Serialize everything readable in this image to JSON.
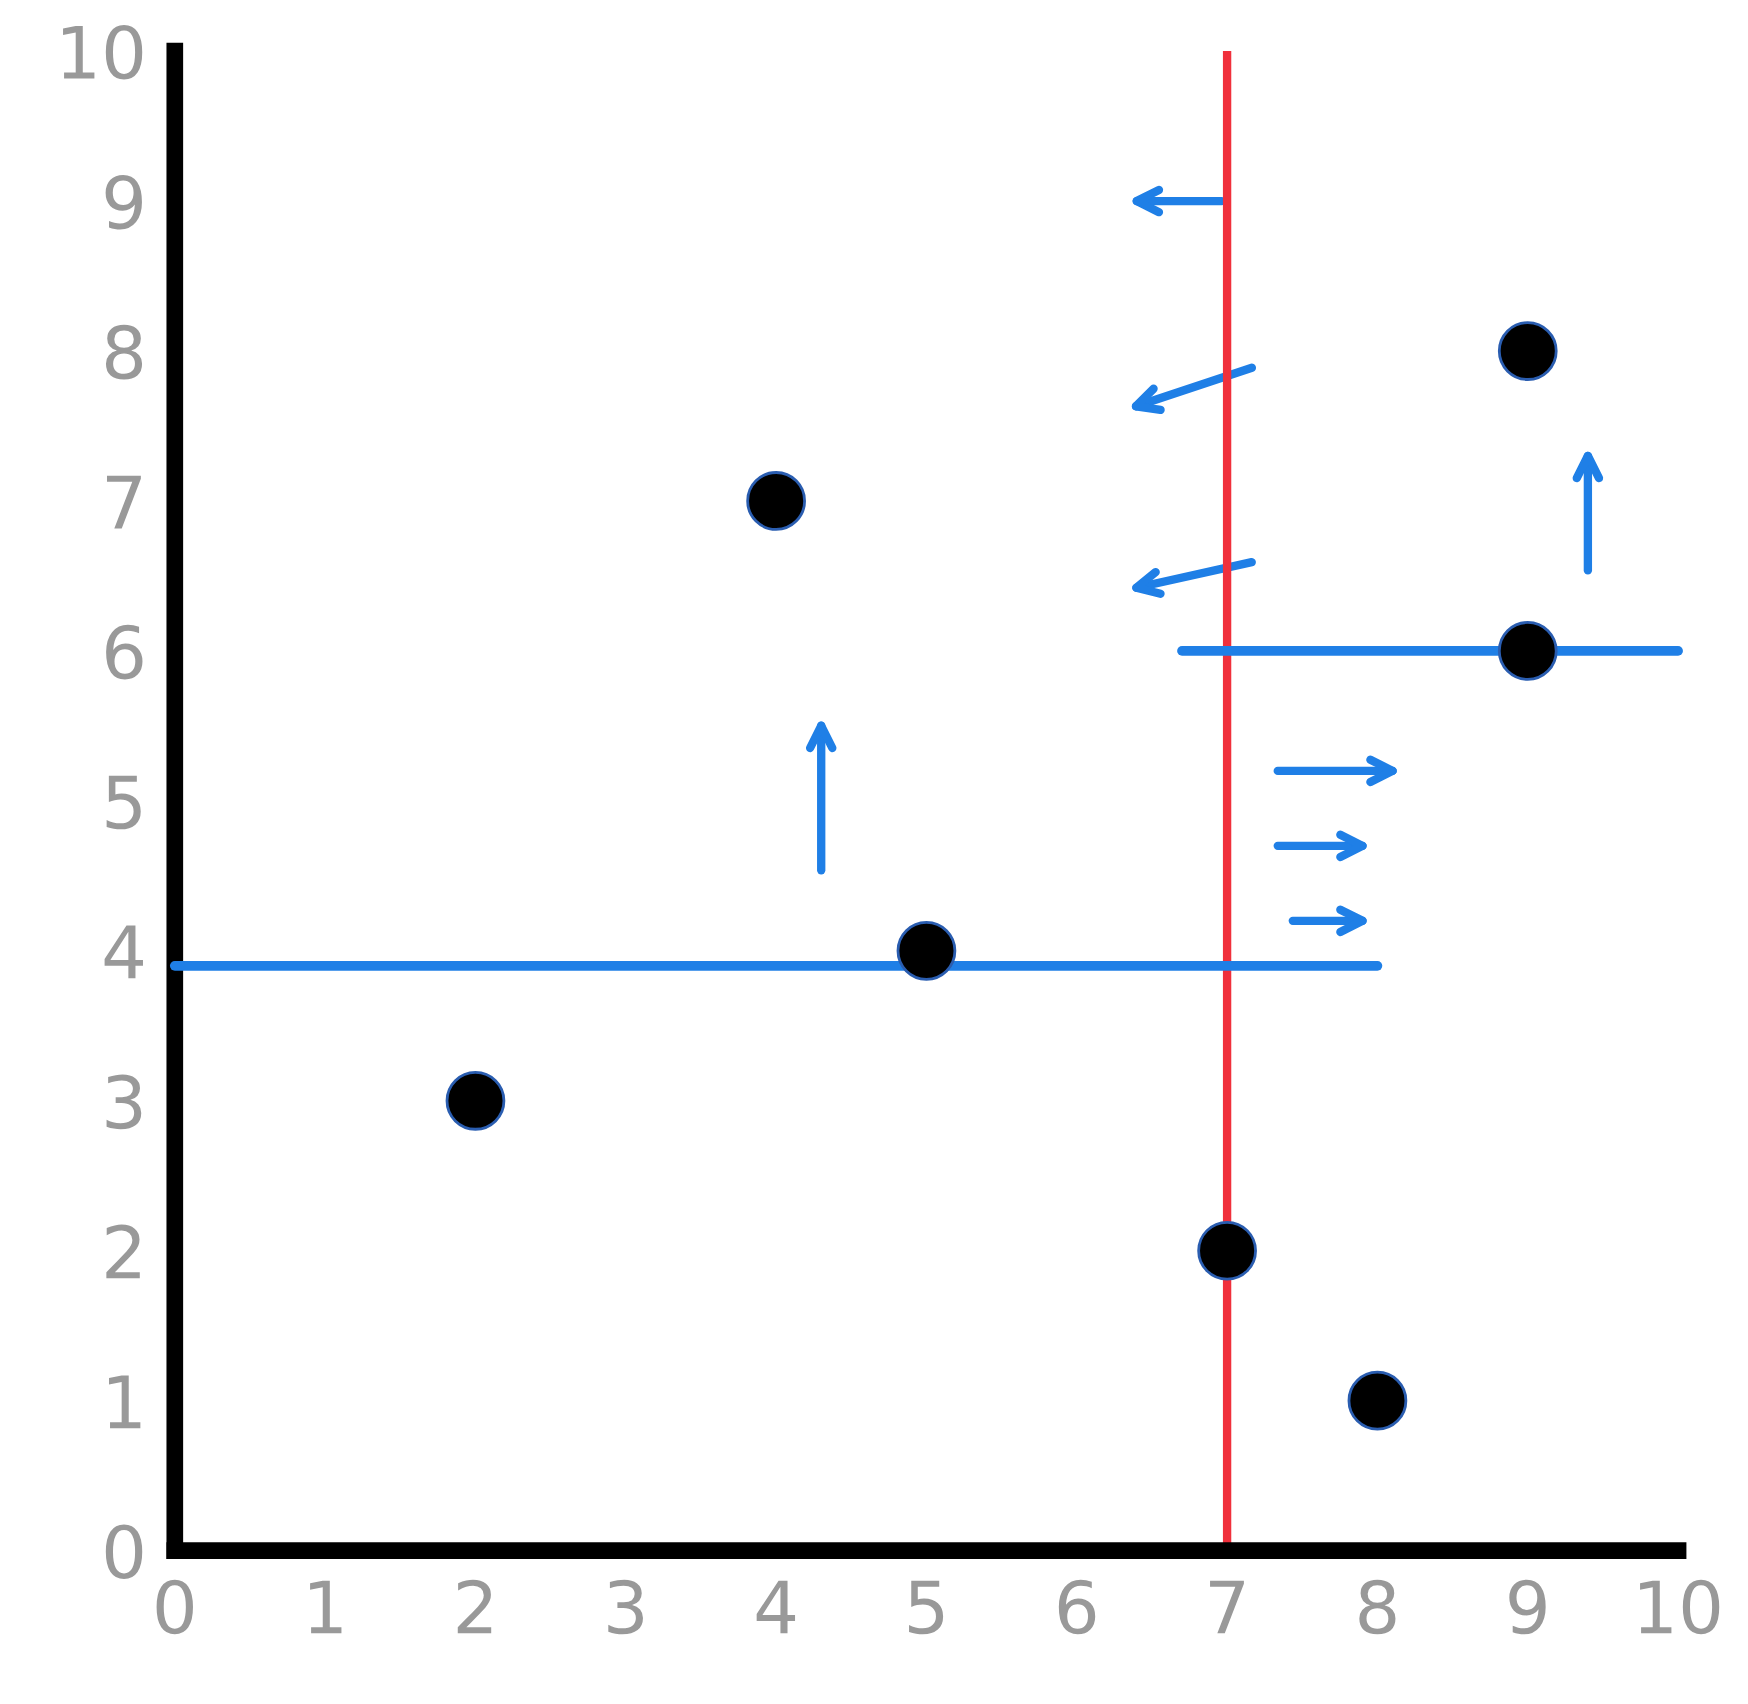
{
  "chart_data": {
    "type": "scatter",
    "xlim": [
      0,
      10
    ],
    "ylim": [
      0,
      10
    ],
    "xticks": [
      0,
      1,
      2,
      3,
      4,
      5,
      6,
      7,
      8,
      9,
      10
    ],
    "yticks": [
      0,
      1,
      2,
      3,
      4,
      5,
      6,
      7,
      8,
      9,
      10
    ],
    "grid": false,
    "marker": "circle",
    "series": [
      {
        "color": "#000000",
        "x": [
          2,
          4,
          5,
          7,
          8,
          9,
          9
        ],
        "values": [
          3,
          7,
          4,
          2,
          1,
          8,
          6
        ]
      },
      {
        "type": "line",
        "marker": "none",
        "color": "#1f7fe6",
        "x": [
          0,
          8
        ],
        "values": [
          3.9,
          3.9
        ]
      },
      {
        "type": "line",
        "marker": "none",
        "color": "#1f7fe6",
        "x": [
          6.7,
          10
        ],
        "values": [
          6,
          6
        ]
      }
    ],
    "ref_lines": [
      {
        "axis": "x",
        "value": 7,
        "color": "#f0303c"
      }
    ]
  }
}
